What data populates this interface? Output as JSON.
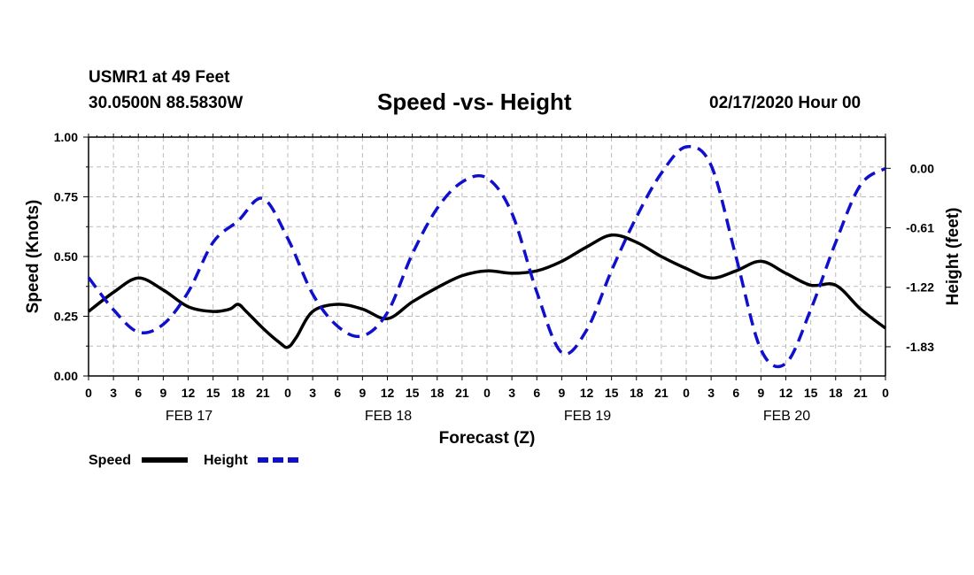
{
  "header": {
    "station": "USMR1 at 49 Feet",
    "coords": "30.0500N 88.5830W",
    "title": "Speed -vs- Height",
    "date": "02/17/2020 Hour 00"
  },
  "colors": {
    "speed": "#000000",
    "height": "#1010cc",
    "grid": "#bbbbbb"
  },
  "chart_data": {
    "type": "line",
    "title": "Speed -vs- Height",
    "xlabel": "Forecast (Z)",
    "ylabel_left": "Speed (Knots)",
    "ylabel_right": "Height (feet)",
    "x_range_hours": [
      0,
      96
    ],
    "x_tick_hours": [
      0,
      3,
      6,
      9,
      12,
      15,
      18,
      21,
      24,
      27,
      30,
      33,
      36,
      39,
      42,
      45,
      48,
      51,
      54,
      57,
      60,
      63,
      66,
      69,
      72,
      75,
      78,
      81,
      84,
      87,
      90,
      93,
      96
    ],
    "x_tick_labels": [
      "0",
      "3",
      "6",
      "9",
      "12",
      "15",
      "18",
      "21",
      "0",
      "3",
      "6",
      "9",
      "12",
      "15",
      "18",
      "21",
      "0",
      "3",
      "6",
      "9",
      "12",
      "15",
      "18",
      "21",
      "0",
      "3",
      "6",
      "9",
      "12",
      "15",
      "18",
      "21",
      "0"
    ],
    "day_labels": [
      {
        "hour": 12,
        "label": "FEB 17"
      },
      {
        "hour": 36,
        "label": "FEB 18"
      },
      {
        "hour": 60,
        "label": "FEB 19"
      },
      {
        "hour": 84,
        "label": "FEB 20"
      }
    ],
    "y_left": {
      "min": 0,
      "max": 1.0,
      "ticks": [
        0,
        0.25,
        0.5,
        0.75,
        1.0
      ],
      "labels": [
        "0.00",
        "0.25",
        "0.50",
        "0.75",
        "1.00"
      ]
    },
    "y_right": {
      "min": -2.13,
      "max": 0.32,
      "ticks": [
        0.0,
        -0.61,
        -1.22,
        -1.83
      ],
      "labels": [
        "0.00",
        "-0.61",
        "-1.22",
        "-1.83"
      ]
    },
    "legend": [
      "Speed",
      "Height"
    ],
    "legend_position": "bottom-left",
    "series": [
      {
        "name": "Speed",
        "axis": "left",
        "style": "solid",
        "x": [
          0,
          3,
          6,
          9,
          12,
          15,
          17,
          18,
          19,
          21,
          23,
          24,
          25,
          27,
          30,
          33,
          36,
          39,
          42,
          45,
          48,
          51,
          54,
          57,
          60,
          63,
          66,
          69,
          72,
          75,
          78,
          81,
          84,
          87,
          90,
          93,
          96
        ],
        "values": [
          0.27,
          0.35,
          0.41,
          0.36,
          0.29,
          0.27,
          0.28,
          0.3,
          0.27,
          0.2,
          0.14,
          0.12,
          0.16,
          0.27,
          0.3,
          0.28,
          0.24,
          0.31,
          0.37,
          0.42,
          0.44,
          0.43,
          0.44,
          0.48,
          0.54,
          0.59,
          0.56,
          0.5,
          0.45,
          0.41,
          0.44,
          0.48,
          0.43,
          0.38,
          0.38,
          0.28,
          0.2
        ]
      },
      {
        "name": "Height",
        "axis": "right",
        "style": "dashed",
        "x": [
          0,
          3,
          6,
          9,
          12,
          15,
          18,
          21,
          24,
          27,
          30,
          33,
          36,
          39,
          42,
          45,
          48,
          51,
          54,
          57,
          60,
          63,
          66,
          69,
          72,
          75,
          78,
          81,
          84,
          87,
          90,
          93,
          96
        ],
        "values": [
          -1.12,
          -1.45,
          -1.68,
          -1.6,
          -1.27,
          -0.76,
          -0.54,
          -0.31,
          -0.72,
          -1.29,
          -1.62,
          -1.72,
          -1.48,
          -0.88,
          -0.41,
          -0.14,
          -0.1,
          -0.46,
          -1.27,
          -1.89,
          -1.66,
          -1.05,
          -0.5,
          -0.05,
          0.22,
          0.03,
          -0.91,
          -1.86,
          -2.0,
          -1.45,
          -0.76,
          -0.17,
          0.0
        ]
      }
    ]
  }
}
